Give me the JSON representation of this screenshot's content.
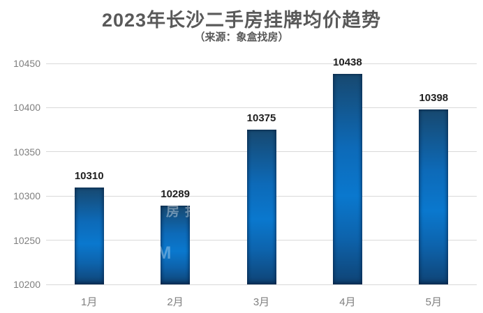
{
  "header": {
    "title": "2023年长沙二手房挂牌均价趋势",
    "subtitle": "（来源：象盒找房）"
  },
  "chart_data": {
    "type": "bar",
    "title": "2023年长沙二手房挂牌均价趋势",
    "subtitle": "（来源：象盒找房）",
    "categories": [
      "1月",
      "2月",
      "3月",
      "4月",
      "5月"
    ],
    "values": [
      10310,
      10289,
      10375,
      10438,
      10398
    ],
    "xlabel": "",
    "ylabel": "",
    "ylim": [
      10200,
      10450
    ],
    "yticks": [
      10200,
      10250,
      10300,
      10350,
      10400,
      10450
    ],
    "grid": true,
    "legend": "none",
    "data_labels": true
  },
  "watermark": {
    "vertical_text": "象盒找房",
    "latin_text": "OM"
  },
  "colors": {
    "background": "#ffffff",
    "title_text": "#595959",
    "axis_text": "#7f7f7f",
    "data_label_text": "#1f1f1f",
    "gridline": "#d9d9d9",
    "bar_gradient_top": "#17486f",
    "bar_gradient_upper": "#0d6ab8",
    "bar_gradient_mid": "#0a78ce",
    "bar_gradient_lower": "#0d63ac",
    "bar_gradient_bottom": "#0f4374"
  }
}
